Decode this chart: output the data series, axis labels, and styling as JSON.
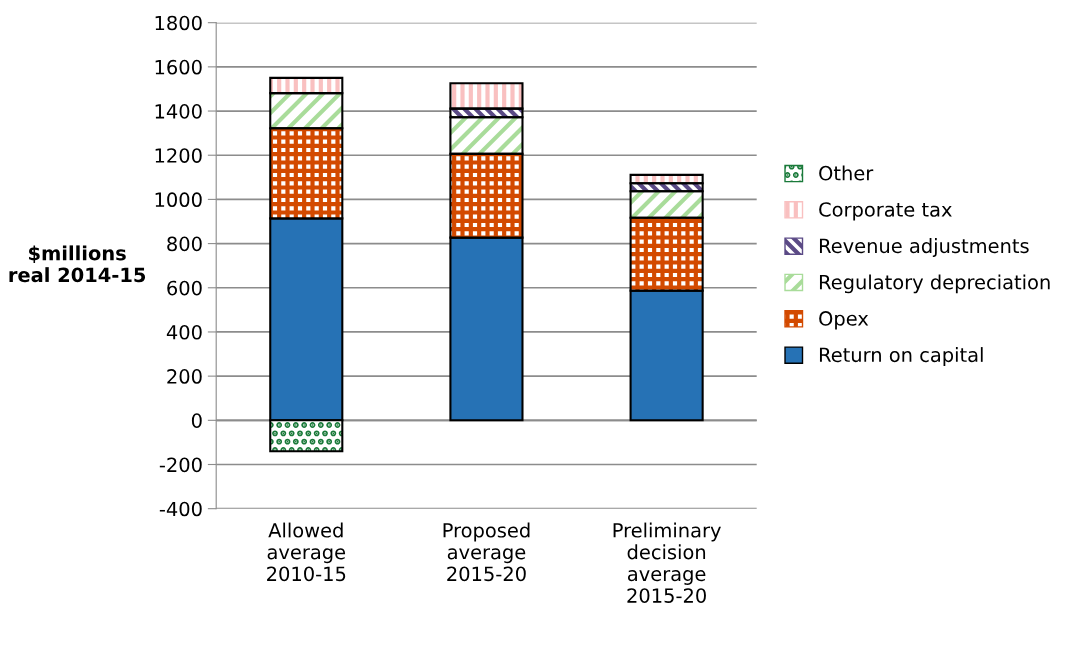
{
  "chart_data": {
    "type": "bar",
    "stacked": true,
    "ylabel": "$millions\nreal 2014-15",
    "categories": [
      "Allowed\naverage\n2010-15",
      "Proposed\naverage\n2015-20",
      "Preliminary\ndecision\naverage\n2015-20"
    ],
    "series": [
      {
        "name": "Return on capital",
        "color": "#2672b5",
        "values": [
          914,
          827,
          587
        ]
      },
      {
        "name": "Opex",
        "color": "#d34a00",
        "values": [
          408,
          379,
          330
        ]
      },
      {
        "name": "Regulatory depreciation",
        "color": "#a9dc9a",
        "values": [
          159,
          166,
          120
        ]
      },
      {
        "name": "Revenue adjustments",
        "color": "#5b4a86",
        "values": [
          null,
          39,
          36
        ]
      },
      {
        "name": "Corporate tax",
        "color": "#f9c0c0",
        "values": [
          69,
          115,
          38
        ]
      },
      {
        "name": "Other",
        "color": "#1a7a3a",
        "values": [
          -140,
          null,
          null
        ]
      }
    ],
    "ylim": [
      -400,
      1800
    ],
    "yticks": [
      -400,
      -200,
      0,
      200,
      400,
      600,
      800,
      1000,
      1200,
      1400,
      1600,
      1800
    ],
    "grid": "y",
    "legend": "right"
  }
}
